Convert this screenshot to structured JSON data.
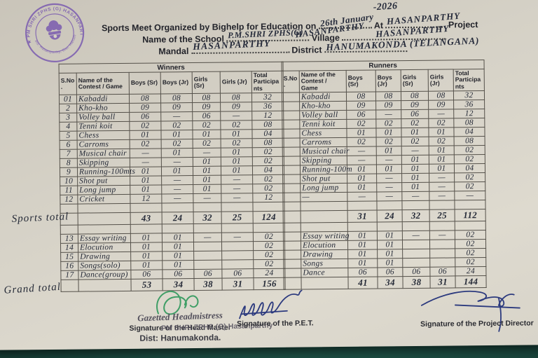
{
  "stamp": {
    "top_text": "★ PM SHRI ZPHS (G) HASANPARTHY ★",
    "bottom_text": "Md. Hasanparthy, Dist: Hanumakonda"
  },
  "header": {
    "line1_prefix": "Sports Meet Organized by Bighelp for Education on",
    "date_hw": "26th January",
    "year_hw": "-2026",
    "at_label": "At",
    "at_value_hw": "HASANPARTHY",
    "line1_suffix": "Project",
    "school_label": "Name of the School",
    "school_value_hw": "P.M.SHRI ZPHS(G)",
    "school_value2_hw": "HASANPARTHY",
    "village_label": "Village",
    "village_value_hw": "HASANPARTHY",
    "mandal_label": "Mandal",
    "mandal_value_hw": "HASANPARTHY",
    "district_label": "District",
    "district_value_hw": "HANUMAKONDA (TELANGANA)"
  },
  "table_columns": [
    "S.No.",
    "Name of the Contest / Game",
    "Boys (Sr)",
    "Boys (Jr)",
    "Girls (Sr)",
    "Girls (Jr)",
    "Total Participants"
  ],
  "winners": {
    "title": "Winners",
    "sports_rows": [
      [
        "01",
        "Kabaddi",
        "08",
        "08",
        "08",
        "08",
        "32"
      ],
      [
        "2",
        "Kho-kho",
        "09",
        "09",
        "09",
        "09",
        "36"
      ],
      [
        "3",
        "Volley ball",
        "06",
        "—",
        "06",
        "—",
        "12"
      ],
      [
        "4",
        "Tenni koit",
        "02",
        "02",
        "02",
        "02",
        "08"
      ],
      [
        "5",
        "Chess",
        "01",
        "01",
        "01",
        "01",
        "04"
      ],
      [
        "6",
        "Carroms",
        "02",
        "02",
        "02",
        "02",
        "08"
      ],
      [
        "7",
        "Musical chair",
        "—",
        "01",
        "—",
        "01",
        "02"
      ],
      [
        "8",
        "Skipping",
        "—",
        "—",
        "01",
        "01",
        "02"
      ],
      [
        "9",
        "Running-100mts",
        "01",
        "01",
        "01",
        "01",
        "04"
      ],
      [
        "10",
        "Shot put",
        "01",
        "—",
        "01",
        "—",
        "02"
      ],
      [
        "11",
        "Long jump",
        "01",
        "—",
        "01",
        "—",
        "02"
      ],
      [
        "12",
        "Cricket",
        "12",
        "—",
        "—",
        "—",
        "12"
      ]
    ],
    "sports_total": [
      "43",
      "24",
      "32",
      "25",
      "124"
    ],
    "cultural_rows": [
      [
        "13",
        "Essay writing",
        "01",
        "01",
        "—",
        "—",
        "02"
      ],
      [
        "14",
        "Elocution",
        "01",
        "01",
        "",
        "",
        "02"
      ],
      [
        "15",
        "Drawing",
        "01",
        "01",
        "",
        "",
        "02"
      ],
      [
        "16",
        "Songs(solo)",
        "01",
        "01",
        "",
        "",
        "02"
      ],
      [
        "17",
        "Dance(group)",
        "06",
        "06",
        "06",
        "06",
        "24"
      ]
    ],
    "grand_total": [
      "53",
      "34",
      "38",
      "31",
      "156"
    ]
  },
  "runners": {
    "title": "Runners",
    "sports_rows": [
      [
        "",
        "Kabaddi",
        "08",
        "08",
        "08",
        "08",
        "32"
      ],
      [
        "",
        "Kho-kho",
        "09",
        "09",
        "09",
        "09",
        "36"
      ],
      [
        "",
        "Volley ball",
        "06",
        "—",
        "06",
        "—",
        "12"
      ],
      [
        "",
        "Tenni koit",
        "02",
        "02",
        "02",
        "02",
        "08"
      ],
      [
        "",
        "Chess",
        "01",
        "01",
        "01",
        "01",
        "04"
      ],
      [
        "",
        "Carroms",
        "02",
        "02",
        "02",
        "02",
        "08"
      ],
      [
        "",
        "Musical chair",
        "—",
        "01",
        "—",
        "01",
        "02"
      ],
      [
        "",
        "Skipping",
        "—",
        "—",
        "01",
        "01",
        "02"
      ],
      [
        "",
        "Running-100m",
        "01",
        "01",
        "01",
        "01",
        "04"
      ],
      [
        "",
        "Shot put",
        "01",
        "—",
        "01",
        "—",
        "02"
      ],
      [
        "",
        "Long jump",
        "01",
        "—",
        "01",
        "—",
        "02"
      ],
      [
        "",
        "—",
        "—",
        "—",
        "—",
        "—",
        "—"
      ]
    ],
    "sports_total": [
      "31",
      "24",
      "32",
      "25",
      "112"
    ],
    "cultural_rows": [
      [
        "",
        "Essay writing",
        "01",
        "01",
        "—",
        "—",
        "02"
      ],
      [
        "",
        "Elocution",
        "01",
        "01",
        "",
        "",
        "02"
      ],
      [
        "",
        "Drawing",
        "01",
        "01",
        "",
        "",
        "02"
      ],
      [
        "",
        "Songs",
        "01",
        "01",
        "",
        "",
        "02"
      ],
      [
        "",
        "Dance",
        "06",
        "06",
        "06",
        "06",
        "24"
      ]
    ],
    "grand_total": [
      "41",
      "34",
      "38",
      "31",
      "144"
    ]
  },
  "annotations": {
    "sports_total_label": "Sports total",
    "grand_total_label": "Grand total"
  },
  "footer": {
    "headmistress_stamp_title": "Gazetted Headmistress",
    "head_master_label": "Signature of the Head Master",
    "stamp_overlay": "PM SHRI ZPHS (G) Hasanparthy",
    "district_line": "Dist: Hanumakonda.",
    "pet_label": "Signature of the P.E.T.",
    "project_director_label": "Signature of the Project Director"
  }
}
